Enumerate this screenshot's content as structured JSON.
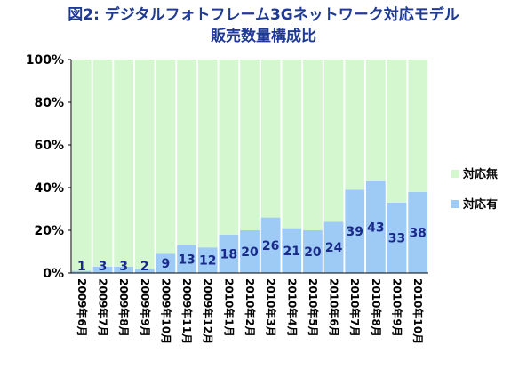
{
  "title_line1": "図2:  デジタルフォトフレーム3Gネットワーク対応モデル",
  "title_line2": "販売数量構成比",
  "chart_data": {
    "type": "bar",
    "stacked": true,
    "percent": true,
    "categories": [
      "2009年6月",
      "2009年7月",
      "2009年8月",
      "2009年9月",
      "2009年10月",
      "2009年11月",
      "2009年12月",
      "2010年1月",
      "2010年2月",
      "2010年3月",
      "2010年4月",
      "2010年5月",
      "2010年6月",
      "2010年7月",
      "2010年8月",
      "2010年9月",
      "2010年10月"
    ],
    "series": [
      {
        "name": "対応有",
        "color": "#9ecbf6",
        "values": [
          1,
          3,
          3,
          2,
          9,
          13,
          12,
          18,
          20,
          26,
          21,
          20,
          24,
          39,
          43,
          33,
          38
        ]
      },
      {
        "name": "対応無",
        "color": "#d4f7d0",
        "values": [
          99,
          97,
          97,
          98,
          91,
          87,
          88,
          82,
          80,
          74,
          79,
          80,
          76,
          61,
          57,
          67,
          62
        ]
      }
    ],
    "y_ticks": [
      "0%",
      "20%",
      "40%",
      "60%",
      "80%",
      "100%"
    ],
    "ylim": [
      0,
      100
    ],
    "grid": false,
    "legend_placement": "right"
  }
}
